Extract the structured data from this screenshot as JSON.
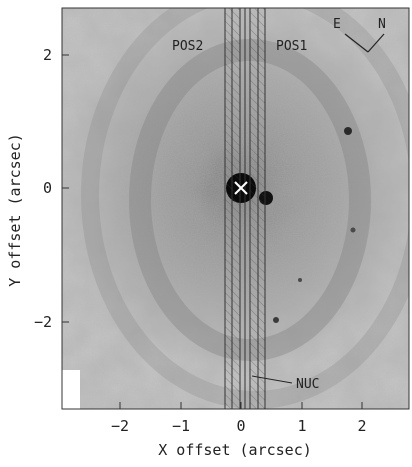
{
  "figure": {
    "x_axis_label": "X offset (arcsec)",
    "y_axis_label": "Y offset (arcsec)",
    "x_ticks": [
      "−2",
      "−1",
      "0",
      "1",
      "2"
    ],
    "y_ticks": [
      "2",
      "0",
      "−2"
    ],
    "slit_labels": {
      "pos2": "POS2",
      "pos1": "POS1",
      "nuc": "NUC"
    },
    "compass": {
      "east": "E",
      "north": "N"
    }
  }
}
